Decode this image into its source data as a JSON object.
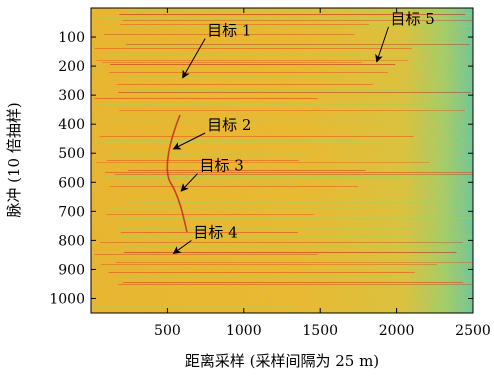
{
  "chart_data": {
    "type": "heatmap",
    "xlabel": "距离采样 (采样间隔为 25 m)",
    "ylabel": "脉冲 (10 倍抽样)",
    "xlim": [
      0,
      2500
    ],
    "ylim": [
      1050,
      0
    ],
    "xticks": [
      500,
      1000,
      1500,
      2000,
      2500
    ],
    "yticks": [
      100,
      200,
      300,
      400,
      500,
      600,
      700,
      800,
      900,
      1000
    ],
    "colormap": [
      "#3fbfa6",
      "#9fd35a",
      "#e3c22c",
      "#f0a31f",
      "#e0561b",
      "#b8141b"
    ],
    "annotations": [
      {
        "text": "目标 1",
        "text_x": 760,
        "text_y": 95,
        "arrow_to_x": 600,
        "arrow_to_y": 240
      },
      {
        "text": "目标 2",
        "text_x": 760,
        "text_y": 420,
        "arrow_to_x": 540,
        "arrow_to_y": 485
      },
      {
        "text": "目标 3",
        "text_x": 710,
        "text_y": 560,
        "arrow_to_x": 590,
        "arrow_to_y": 630
      },
      {
        "text": "目标 4",
        "text_x": 670,
        "text_y": 790,
        "arrow_to_x": 540,
        "arrow_to_y": 845
      },
      {
        "text": "目标 5",
        "text_x": 1960,
        "text_y": 55,
        "arrow_to_x": 1870,
        "arrow_to_y": 185
      }
    ]
  }
}
